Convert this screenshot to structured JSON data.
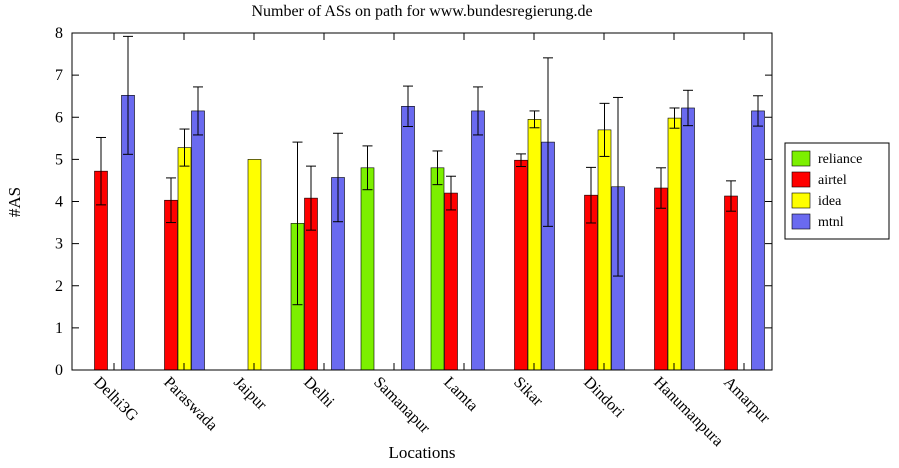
{
  "chart_data": {
    "type": "bar",
    "title": "Number of ASs on path for www.bundesregierung.de",
    "xlabel": "Locations",
    "ylabel": "#AS",
    "ylim": [
      0,
      8
    ],
    "yticks": [
      "0",
      "1",
      "2",
      "3",
      "4",
      "5",
      "6",
      "7",
      "8"
    ],
    "categories": [
      "Delhi3G",
      "Paraswada",
      "Jaipur",
      "Delhi",
      "Samanapur",
      "Lamta",
      "Sikar",
      "Dindori",
      "Hanumanpura",
      "Amarpur"
    ],
    "legend_position": "right",
    "series": [
      {
        "name": "reliance",
        "color": "#7cf000",
        "values": [
          null,
          null,
          null,
          3.48,
          4.8,
          4.8,
          null,
          null,
          null,
          null
        ],
        "errors": [
          null,
          null,
          null,
          1.93,
          0.52,
          0.4,
          null,
          null,
          null,
          null
        ]
      },
      {
        "name": "airtel",
        "color": "#ff0000",
        "values": [
          4.72,
          4.03,
          null,
          4.08,
          null,
          4.2,
          4.98,
          4.15,
          4.32,
          4.13
        ],
        "errors": [
          0.8,
          0.53,
          null,
          0.76,
          null,
          0.4,
          0.15,
          0.66,
          0.48,
          0.36
        ]
      },
      {
        "name": "idea",
        "color": "#ffff00",
        "values": [
          null,
          5.28,
          5.0,
          null,
          null,
          null,
          5.95,
          5.7,
          5.98,
          null
        ],
        "errors": [
          null,
          0.44,
          null,
          null,
          null,
          null,
          0.2,
          0.63,
          0.24,
          null
        ]
      },
      {
        "name": "mtnl",
        "color": "#6a6af0",
        "values": [
          6.52,
          6.15,
          null,
          4.57,
          6.26,
          6.15,
          5.41,
          4.35,
          6.22,
          6.15
        ],
        "errors": [
          1.4,
          0.57,
          null,
          1.05,
          0.48,
          0.57,
          2.0,
          2.12,
          0.42,
          0.36
        ]
      }
    ]
  }
}
